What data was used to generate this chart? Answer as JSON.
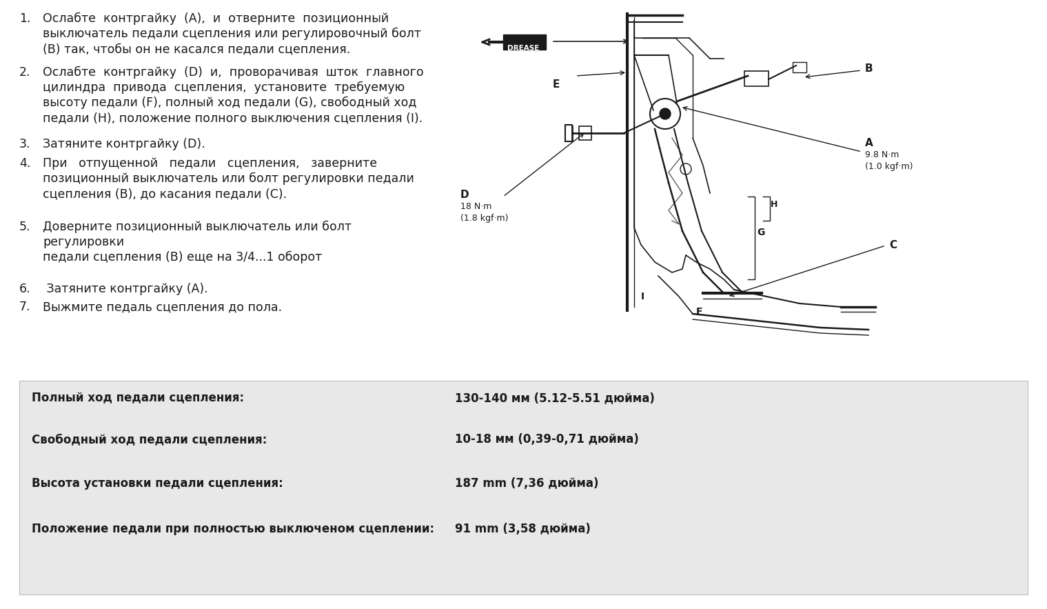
{
  "background_color": "#ffffff",
  "text_color": "#1a1a1a",
  "table_bg_color": "#e8e8e8",
  "main_text_items": [
    {
      "number": "1.",
      "indent": 55,
      "lines": [
        "Ослабте  контргайку  (А),  и  отверните  позиционный",
        "выключатель педали сцепления или регулировочный болт",
        "(В) так, чтобы он не касался педали сцепления."
      ]
    },
    {
      "number": "2.",
      "indent": 55,
      "lines": [
        "Ослабте  контргайку  (D)  и,  проворачивая  шток  главного",
        "цилиндра  привода  сцепления,  установите  требуемую",
        "высоту педали (F), полный ход педали (G), свободный ход",
        "педали (H), положение полного выключения сцепления (I)."
      ]
    },
    {
      "number": "3.",
      "indent": 55,
      "lines": [
        "Затяните контргайку (D)."
      ]
    },
    {
      "number": "4.",
      "indent": 55,
      "lines": [
        "При   отпущенной   педали   сцепления,   заверните",
        "позиционный выключатель или болт регулировки педали",
        "сцепления (В), до касания педали (С)."
      ]
    },
    {
      "number": "5.",
      "indent": 55,
      "lines": [
        "Доверните позиционный выключатель или болт",
        "регулировки",
        "педали сцепления (В) еще на 3/4...1 оборот"
      ]
    },
    {
      "number": "6.",
      "indent": 55,
      "lines": [
        " Затяните контргайку (А)."
      ]
    },
    {
      "number": "7.",
      "indent": 55,
      "lines": [
        "Выжмите педаль сцепления до пола."
      ]
    }
  ],
  "table_rows": [
    {
      "label": "Полный ход педали сцепления:",
      "value": "130-140 мм (5.12-5.51 дюйма)"
    },
    {
      "label": "Свободный ход педали сцепления:",
      "value": "10-18 мм (0,39-0,71 дюйма)"
    },
    {
      "label": "Высота установки педали сцепления:",
      "value": "187 mm (7,36 дюйма)"
    },
    {
      "label": "Положение педали при полностью выключеном сцеплении:",
      "value": "91 mm (3,58 дюйма)"
    }
  ]
}
